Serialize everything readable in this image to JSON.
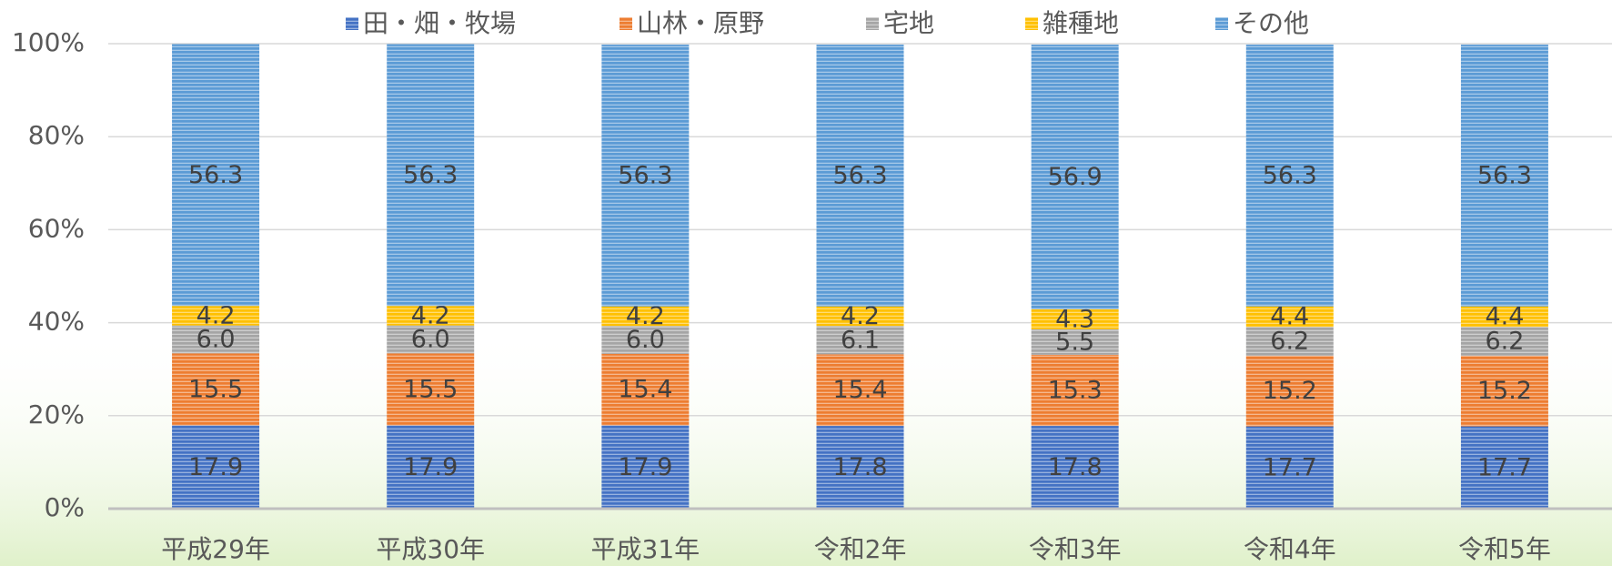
{
  "chart_data": {
    "type": "stacked_bar",
    "categories": [
      "平成29年",
      "平成30年",
      "平成31年",
      "令和2年",
      "令和3年",
      "令和4年",
      "令和5年"
    ],
    "series": [
      {
        "name": "田・畑・牧場",
        "color": "#4472c4",
        "values": [
          17.9,
          17.9,
          17.9,
          17.8,
          17.8,
          17.7,
          17.7
        ],
        "value_labels": [
          "17.9",
          "17.9",
          "17.9",
          "17.8",
          "17.8",
          "17.7",
          "17.7"
        ]
      },
      {
        "name": "山林・原野",
        "color": "#ed7d31",
        "values": [
          15.5,
          15.5,
          15.4,
          15.4,
          15.3,
          15.2,
          15.2
        ],
        "value_labels": [
          "15.5",
          "15.5",
          "15.4",
          "15.4",
          "15.3",
          "15.2",
          "15.2"
        ]
      },
      {
        "name": "宅地",
        "color": "#a5a5a5",
        "values": [
          6.0,
          6.0,
          6.0,
          6.1,
          5.5,
          6.2,
          6.2
        ],
        "value_labels": [
          "6.0",
          "6.0",
          "6.0",
          "6.1",
          "5.5",
          "6.2",
          "6.2"
        ]
      },
      {
        "name": "雑種地",
        "color": "#ffc000",
        "values": [
          4.2,
          4.2,
          4.2,
          4.2,
          4.3,
          4.4,
          4.4
        ],
        "value_labels": [
          "4.2",
          "4.2",
          "4.2",
          "4.2",
          "4.3",
          "4.4",
          "4.4"
        ]
      },
      {
        "name": "その他",
        "color": "#5b9bd5",
        "values": [
          56.3,
          56.3,
          56.3,
          56.3,
          56.9,
          56.3,
          56.3
        ],
        "value_labels": [
          "56.3",
          "56.3",
          "56.3",
          "56.3",
          "56.9",
          "56.3",
          "56.3"
        ]
      }
    ],
    "ylim": [
      0,
      100
    ],
    "yticks": [
      {
        "value": 0,
        "label": "0%"
      },
      {
        "value": 20,
        "label": "20%"
      },
      {
        "value": 40,
        "label": "40%"
      },
      {
        "value": 60,
        "label": "60%"
      },
      {
        "value": 80,
        "label": "80%"
      },
      {
        "value": 100,
        "label": "100%"
      }
    ],
    "grid": true,
    "legend": "top"
  }
}
